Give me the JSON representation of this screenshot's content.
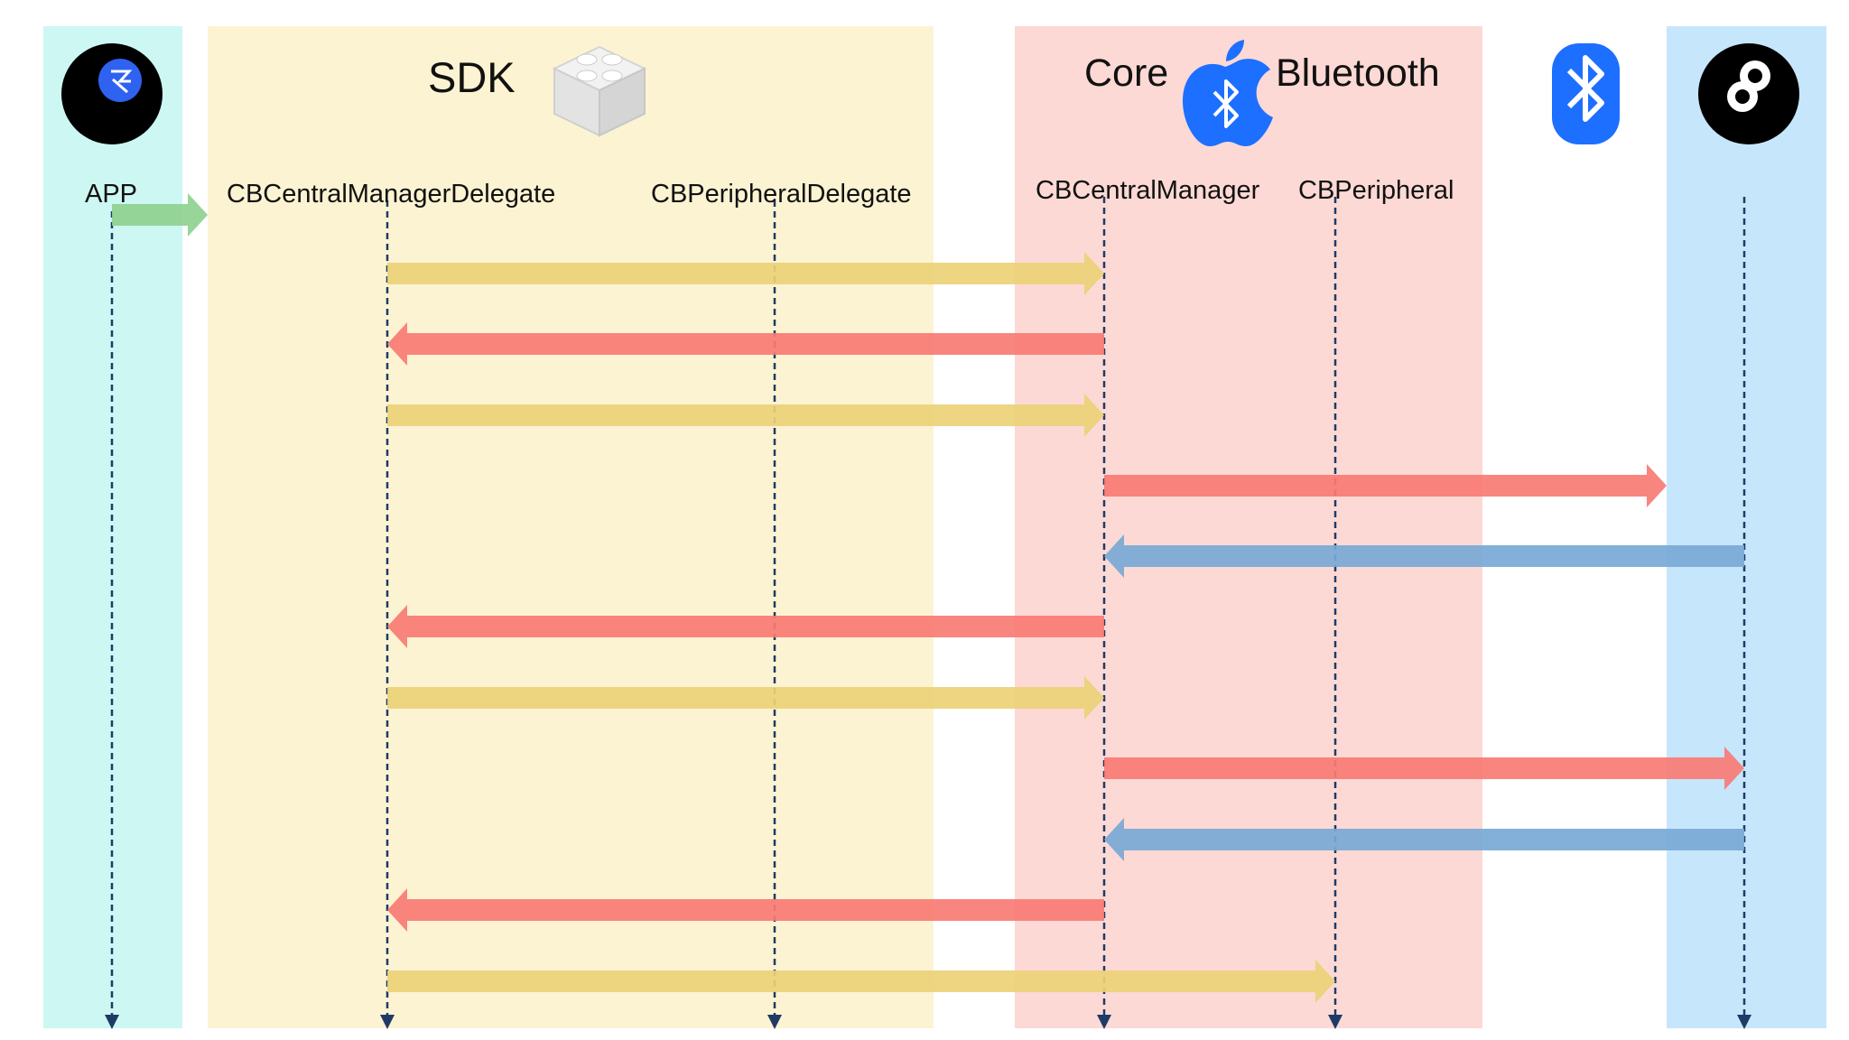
{
  "colors": {
    "app_lane": "#cdf7f2",
    "sdk_lane": "#fcf3d2",
    "core_lane": "#fcd9d4",
    "device_lane": "#c6e6fb",
    "lifeline": "#1e3b66",
    "arrow_green": "#8fd18f",
    "arrow_yellow": "#ecd177",
    "arrow_red": "#f87b74",
    "arrow_blue": "#78a9d5",
    "bt_blue": "#1d6fff"
  },
  "header": {
    "sdk_title": "SDK",
    "core_word": "Core",
    "bluetooth_word": "Bluetooth"
  },
  "participants": {
    "app": "APP",
    "central_delegate": "CBCentralManagerDelegate",
    "peripheral_delegate": "CBPeripheralDelegate",
    "central_manager": "CBCentralManager",
    "peripheral": "CBPeripheral"
  },
  "icons": {
    "app": "app-logo-icon",
    "sdk": "lego-brick-icon",
    "core_bluetooth": "apple-bluetooth-icon",
    "bluetooth": "bluetooth-icon",
    "device": "device-logo-icon"
  },
  "messages": [
    {
      "from": "app",
      "to": "sdk",
      "color": "green"
    },
    {
      "from": "central_delegate",
      "to": "central_manager",
      "color": "yellow"
    },
    {
      "from": "central_manager",
      "to": "central_delegate",
      "color": "red"
    },
    {
      "from": "central_delegate",
      "to": "central_manager",
      "color": "yellow"
    },
    {
      "from": "central_manager",
      "to": "device_lane",
      "color": "red"
    },
    {
      "from": "device",
      "to": "central_manager",
      "color": "blue"
    },
    {
      "from": "central_manager",
      "to": "central_delegate",
      "color": "red"
    },
    {
      "from": "central_delegate",
      "to": "central_manager",
      "color": "yellow"
    },
    {
      "from": "central_manager",
      "to": "device",
      "color": "red"
    },
    {
      "from": "device",
      "to": "central_manager",
      "color": "blue"
    },
    {
      "from": "central_manager",
      "to": "central_delegate",
      "color": "red"
    },
    {
      "from": "central_delegate",
      "to": "peripheral",
      "color": "yellow"
    }
  ]
}
